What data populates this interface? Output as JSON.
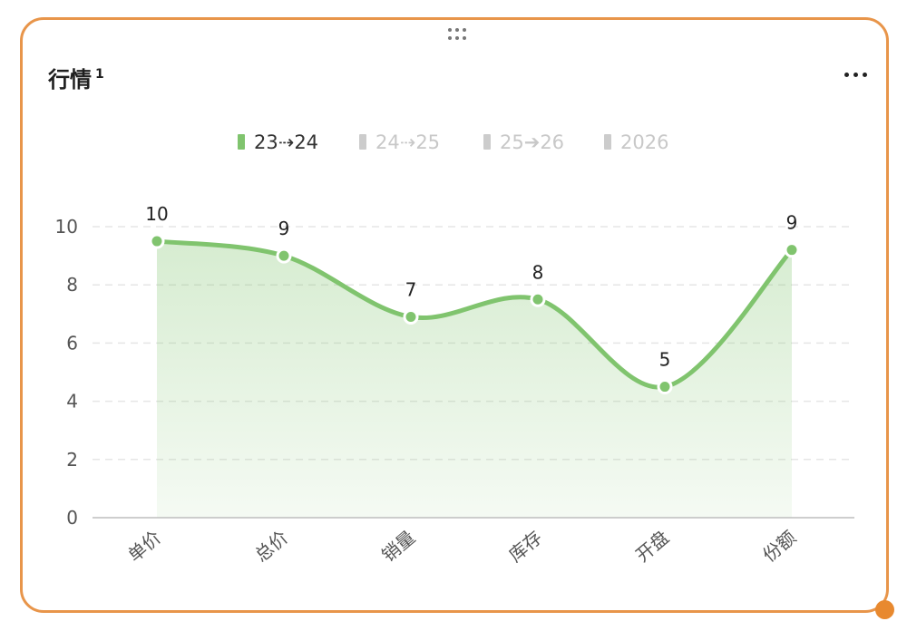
{
  "card": {
    "title": "行情",
    "title_sup": "1",
    "border_color": "#e8954a",
    "more_icon": "more-horizontal-icon",
    "drag_icon": "drag-handle-icon"
  },
  "chart_data": {
    "type": "area",
    "smooth": true,
    "grid": true,
    "legend_position": "top-center",
    "accent_color": "#80c46e",
    "inactive_color": "#cccccc",
    "categories": [
      "单价",
      "总价",
      "销量",
      "库存",
      "开盘",
      "份额"
    ],
    "ylim": [
      0,
      10
    ],
    "yticks": [
      0,
      2,
      4,
      6,
      8,
      10
    ],
    "legend": [
      {
        "label": "23⇢24",
        "active": true
      },
      {
        "label": "24⇢25",
        "active": false
      },
      {
        "label": "25➔26",
        "active": false
      },
      {
        "label": "2026",
        "active": false
      }
    ],
    "series": [
      {
        "name": "23⇢24",
        "values": [
          9.5,
          9.0,
          6.9,
          7.5,
          4.5,
          9.2
        ],
        "labels": [
          "10",
          "9",
          "7",
          "8",
          "5",
          "9"
        ]
      }
    ]
  }
}
